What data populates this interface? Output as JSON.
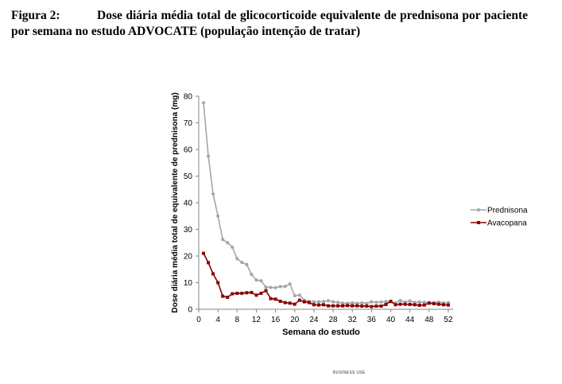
{
  "caption": {
    "label": "Figura 2:",
    "text": "Dose diária média total de glicocorticoide equivalente de prednisona por paciente por semana no estudo ADVOCATE (população intenção de tratar)"
  },
  "footer_mark": "BUSINESS USE",
  "chart_data": {
    "type": "line",
    "title": "",
    "xlabel": "Semana do estudo",
    "ylabel": "Dose diária média total de equivalente de prednisona (mg)",
    "xlim": [
      0,
      53
    ],
    "ylim": [
      0,
      80
    ],
    "x_ticks": [
      "0",
      "4",
      "8",
      "12",
      "16",
      "20",
      "24",
      "28",
      "32",
      "36",
      "40",
      "44",
      "48",
      "52"
    ],
    "y_ticks": [
      "0",
      "10",
      "20",
      "30",
      "40",
      "50",
      "60",
      "70",
      "80"
    ],
    "x": [
      1,
      2,
      3,
      4,
      5,
      6,
      7,
      8,
      9,
      10,
      11,
      12,
      13,
      14,
      15,
      16,
      17,
      18,
      19,
      20,
      21,
      22,
      23,
      24,
      25,
      26,
      27,
      28,
      29,
      30,
      31,
      32,
      33,
      34,
      35,
      36,
      37,
      38,
      39,
      40,
      41,
      42,
      43,
      44,
      45,
      46,
      47,
      48,
      49,
      50,
      51,
      52
    ],
    "series": [
      {
        "name": "Prednisona",
        "color": "#a6a6a6",
        "marker": "circle",
        "values": [
          77.5,
          57.5,
          43.3,
          35.0,
          26.2,
          25.0,
          23.3,
          19.0,
          17.6,
          16.8,
          13.1,
          11.0,
          10.7,
          8.3,
          8.2,
          8.1,
          8.5,
          8.6,
          9.5,
          5.1,
          5.3,
          3.4,
          3.0,
          2.8,
          2.8,
          2.9,
          3.2,
          2.8,
          2.6,
          2.3,
          2.2,
          2.4,
          2.2,
          2.4,
          2.2,
          2.8,
          2.6,
          2.7,
          2.9,
          2.8,
          2.4,
          3.3,
          2.7,
          3.1,
          2.6,
          2.7,
          2.6,
          2.5,
          2.5,
          2.7,
          2.4,
          2.5
        ]
      },
      {
        "name": "Avacopana",
        "color": "#8b0000",
        "marker": "square",
        "values": [
          21.0,
          17.5,
          13.3,
          10.0,
          4.9,
          4.5,
          5.8,
          6.0,
          6.0,
          6.2,
          6.3,
          5.3,
          6.0,
          7.0,
          4.0,
          3.8,
          3.0,
          2.5,
          2.3,
          1.9,
          3.4,
          2.8,
          2.5,
          1.7,
          1.6,
          1.7,
          1.3,
          1.3,
          1.3,
          1.3,
          1.4,
          1.3,
          1.3,
          1.2,
          1.2,
          1.0,
          1.2,
          1.2,
          1.8,
          3.0,
          1.7,
          1.9,
          1.9,
          1.8,
          1.7,
          1.5,
          1.6,
          2.3,
          2.1,
          1.9,
          1.7,
          1.6
        ]
      }
    ],
    "legend_position": "right"
  }
}
